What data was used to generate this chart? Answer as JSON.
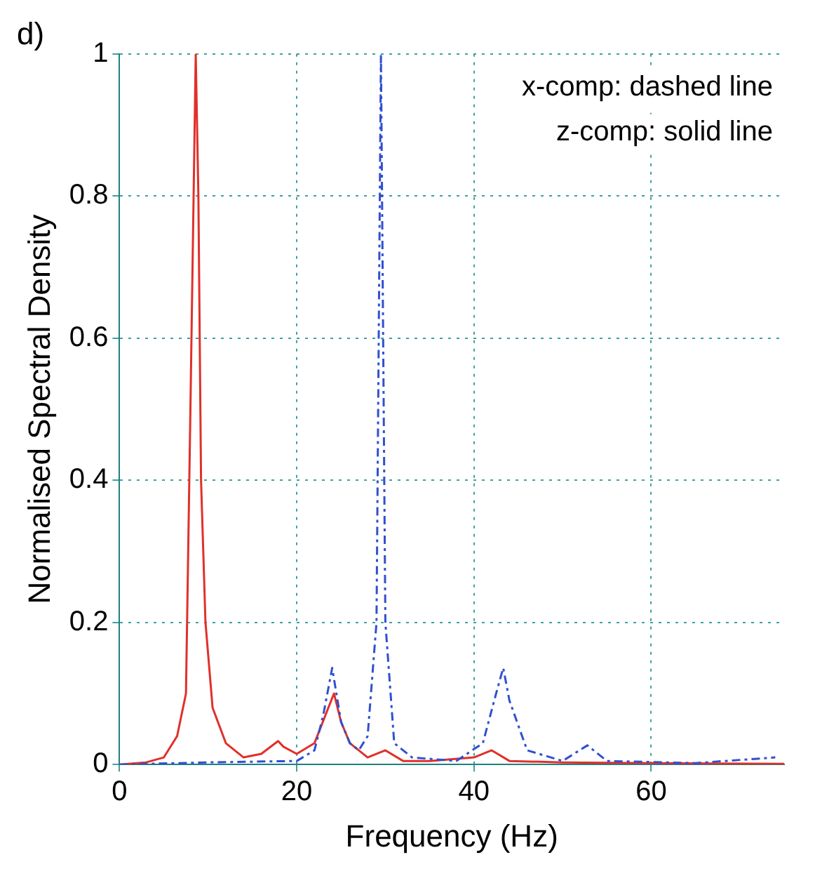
{
  "chart_data": {
    "type": "line",
    "title": "d)",
    "xlabel": "Frequency (Hz)",
    "ylabel": "Normalised Spectral Density",
    "annotations": [
      "x-comp: dashed line",
      "z-comp: solid line"
    ],
    "series": [
      {
        "color": "#3050d0",
        "line_style": "dashed",
        "x": [
          0,
          10,
          20,
          22,
          23,
          24,
          25,
          26,
          27,
          28,
          29,
          29.5,
          30,
          31,
          33,
          38,
          41,
          42.5,
          43.3,
          44,
          46,
          50,
          52.8,
          55,
          65,
          74
        ],
        "values": [
          0,
          0.003,
          0.005,
          0.02,
          0.07,
          0.136,
          0.06,
          0.03,
          0.02,
          0.04,
          0.2,
          1,
          0.2,
          0.03,
          0.01,
          0.005,
          0.03,
          0.1,
          0.136,
          0.09,
          0.02,
          0.005,
          0.027,
          0.005,
          0.002,
          0.01
        ]
      },
      {
        "color": "#e0302a",
        "line_style": "solid",
        "x": [
          0,
          3,
          5,
          6.5,
          7.5,
          8,
          8.3,
          8.6,
          8.9,
          9.2,
          9.7,
          10.5,
          12,
          14,
          16,
          17.9,
          18.5,
          20,
          22,
          24.2,
          25,
          26,
          28,
          30,
          32,
          35,
          40,
          42,
          44,
          50,
          60,
          75
        ],
        "values": [
          0,
          0.003,
          0.01,
          0.04,
          0.1,
          0.5,
          0.75,
          1,
          0.8,
          0.4,
          0.2,
          0.08,
          0.03,
          0.01,
          0.015,
          0.033,
          0.025,
          0.015,
          0.03,
          0.1,
          0.06,
          0.03,
          0.01,
          0.02,
          0.005,
          0.005,
          0.01,
          0.02,
          0.005,
          0.003,
          0.002,
          0.001
        ]
      }
    ],
    "xlim": [
      0,
      75
    ],
    "xticks": [
      0,
      20,
      40,
      60
    ],
    "ylim": [
      0,
      1
    ],
    "yticks": [
      0,
      0.2,
      0.4,
      0.6,
      0.8,
      1
    ],
    "grid": true,
    "legend": false
  }
}
